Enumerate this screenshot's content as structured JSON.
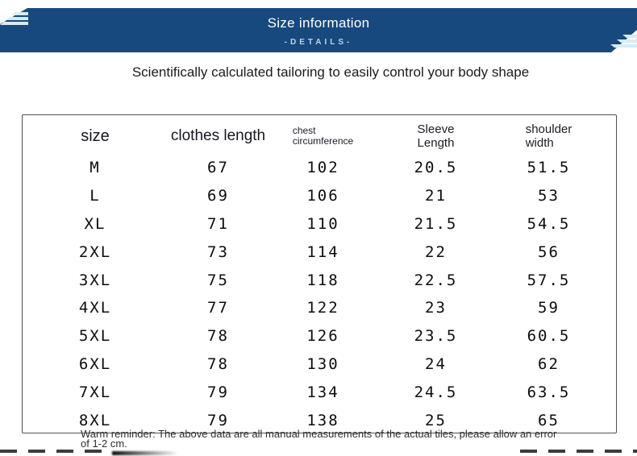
{
  "banner": {
    "title": "Size information",
    "details_label": "-DETAILS-",
    "bg_color": "#17497E",
    "stripe_color": "#D6ECF4"
  },
  "subtitle": "Scientifically calculated tailoring to easily control your body shape",
  "size_table": {
    "columns": [
      {
        "line1": "size",
        "line2": ""
      },
      {
        "line1": "clothes length",
        "line2": ""
      },
      {
        "line1": "chest",
        "line2": "circumference"
      },
      {
        "line1": "Sleeve",
        "line2": "Length"
      },
      {
        "line1": "shoulder",
        "line2": "width"
      }
    ],
    "rows": [
      {
        "size": "M",
        "values": [
          "67",
          "102",
          "20.5",
          "51.5"
        ]
      },
      {
        "size": "L",
        "values": [
          "69",
          "106",
          "21",
          "53"
        ]
      },
      {
        "size": "XL",
        "values": [
          "71",
          "110",
          "21.5",
          "54.5"
        ]
      },
      {
        "size": "2XL",
        "values": [
          "73",
          "114",
          "22",
          "56"
        ]
      },
      {
        "size": "3XL",
        "values": [
          "75",
          "118",
          "22.5",
          "57.5"
        ]
      },
      {
        "size": "4XL",
        "values": [
          "77",
          "122",
          "23",
          "59"
        ]
      },
      {
        "size": "5XL",
        "values": [
          "78",
          "126",
          "23.5",
          "60.5"
        ]
      },
      {
        "size": "6XL",
        "values": [
          "78",
          "130",
          "24",
          "62"
        ]
      },
      {
        "size": "7XL",
        "values": [
          "79",
          "134",
          "24.5",
          "63.5"
        ]
      },
      {
        "size": "8XL",
        "values": [
          "79",
          "138",
          "25",
          "65"
        ]
      }
    ]
  },
  "reminder": "Warm reminder: The above data are all manual measurements of the actual tiles, please allow an error of 1-2 cm.",
  "chart_data": {
    "type": "table",
    "title": "Size information",
    "columns": [
      "size",
      "clothes length",
      "chest circumference",
      "Sleeve Length",
      "shoulder width"
    ],
    "rows": [
      [
        "M",
        67,
        102,
        20.5,
        51.5
      ],
      [
        "L",
        69,
        106,
        21,
        53
      ],
      [
        "XL",
        71,
        110,
        21.5,
        54.5
      ],
      [
        "2XL",
        73,
        114,
        22,
        56
      ],
      [
        "3XL",
        75,
        118,
        22.5,
        57.5
      ],
      [
        "4XL",
        77,
        122,
        23,
        59
      ],
      [
        "5XL",
        78,
        126,
        23.5,
        60.5
      ],
      [
        "6XL",
        78,
        130,
        24,
        62
      ],
      [
        "7XL",
        79,
        134,
        24.5,
        63.5
      ],
      [
        "8XL",
        79,
        138,
        25,
        65
      ]
    ],
    "units": "cm"
  }
}
